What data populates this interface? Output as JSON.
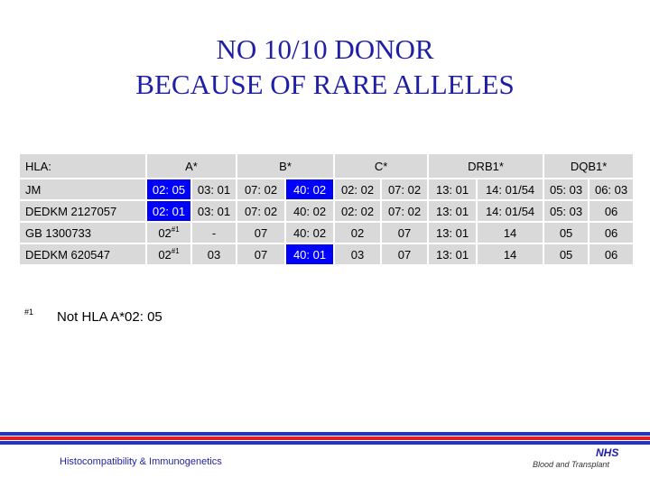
{
  "title": {
    "line1": "NO 10/10 DONOR",
    "line2": "BECAUSE OF RARE ALLELES"
  },
  "table": {
    "header": [
      "HLA:",
      "A*",
      "B*",
      "C*",
      "DRB1*",
      "DQB1*"
    ],
    "rows": [
      {
        "name": "JM",
        "cells": [
          "02: 05",
          "03: 01",
          "07: 02",
          "40: 02",
          "02: 02",
          "07: 02",
          "13: 01",
          "14: 01/54",
          "05: 03",
          "06: 03"
        ],
        "highlight": [
          0,
          3
        ]
      },
      {
        "name": "DEDKM 2127057",
        "cells": [
          "02: 01",
          "03: 01",
          "07: 02",
          "40: 02",
          "02: 02",
          "07: 02",
          "13: 01",
          "14: 01/54",
          "05: 03",
          "06"
        ],
        "highlight": [
          0
        ]
      },
      {
        "name": "GB 1300733",
        "cells": [
          "02#1",
          "-",
          "07",
          "40: 02",
          "02",
          "07",
          "13: 01",
          "14",
          "05",
          "06"
        ],
        "highlight": []
      },
      {
        "name": "DEDKM 620547",
        "cells": [
          "02#1",
          "03",
          "07",
          "40: 01",
          "03",
          "07",
          "13: 01",
          "14",
          "05",
          "06"
        ],
        "highlight": [
          3
        ]
      }
    ],
    "sup_mark": "#1"
  },
  "note": {
    "mark": "#1",
    "text": "Not HLA A*02: 05"
  },
  "footer": {
    "left": "Histocompatibility & Immunogenetics",
    "logo": "NHS",
    "right": "Blood and Transplant"
  },
  "colors": {
    "title": "#1f1fa6",
    "highlight": "#0000ff",
    "cell": "#d9d9d9",
    "bar_blue": "#2233cc",
    "bar_red": "#e02020"
  }
}
